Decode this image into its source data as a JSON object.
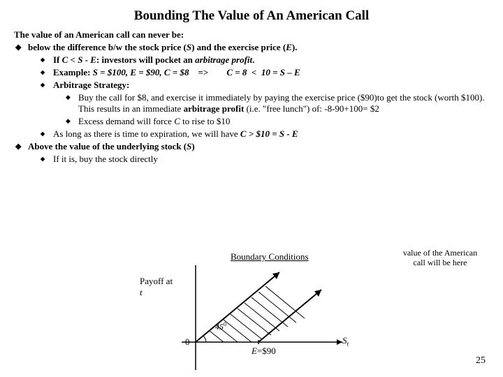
{
  "title": "Bounding The Value of An American Call",
  "intro": "The value of an American call can never be:",
  "lvl1": [
    {
      "text_pre": "below the difference b/w the stock price (",
      "s": "S",
      "mid1": ") and the exercise price (",
      "e": "E",
      "text_post": ").",
      "sub": [
        {
          "html": "If <span class='ital'>C &lt; S - E</span>: investors will pocket an <span class='ital bold'>arbitrage profit</span>."
        },
        {
          "html": "<span class='bold'>Example:</span> <span class='ital'>S = $100, E = $90, C = $8</span>&nbsp;&nbsp;&nbsp;&nbsp;=&gt;&nbsp;&nbsp;&nbsp;&nbsp;&nbsp;&nbsp;&nbsp;&nbsp;<span class='ital'>C = 8 &nbsp;&lt;&nbsp; 10 = S – E</span>"
        },
        {
          "html": "<span class='bold'>Arbitrage Strategy:</span>",
          "sub3": [
            {
              "html": "<span class='nb'>Buy the call for $8, and exercise it immediately by paying the exercise price ($90)to get the stock (worth $100). This results in an immediate </span><span class='bold'>arbitrage profit</span><span class='nb'> (i.e. \"free lunch\") of: -8-90+100= $2</span>"
            },
            {
              "html": "<span class='nb'>Excess demand will force <span class='ital'>C</span> to rise to $10</span>"
            }
          ]
        },
        {
          "html": "<span class='nb'>As long as there is time to expiration, we will have </span><span class='ital'>C &gt; $10 = S - E</span>"
        }
      ]
    },
    {
      "text": "Above the value of the underlying stock (",
      "s": "S",
      "post": ")",
      "sub": [
        {
          "html": "<span class='nb'>If it is, buy the stock directly</span>"
        }
      ]
    }
  ],
  "diagram": {
    "boundary_title": "Boundary Conditions",
    "annotation": "value of the American call will be here",
    "payoff_label_pre": "Payoff at",
    "payoff_label_t": "t",
    "angle": "45",
    "zero": "0",
    "e_label_pre": "E",
    "e_label_val": "=$90",
    "s_label": "S",
    "s_sub": "t",
    "colors": {
      "axis": "#000000",
      "line1": "#000000",
      "line2": "#000000",
      "hatch": "#000000",
      "arc": "#000000"
    }
  },
  "slide_number": "25"
}
